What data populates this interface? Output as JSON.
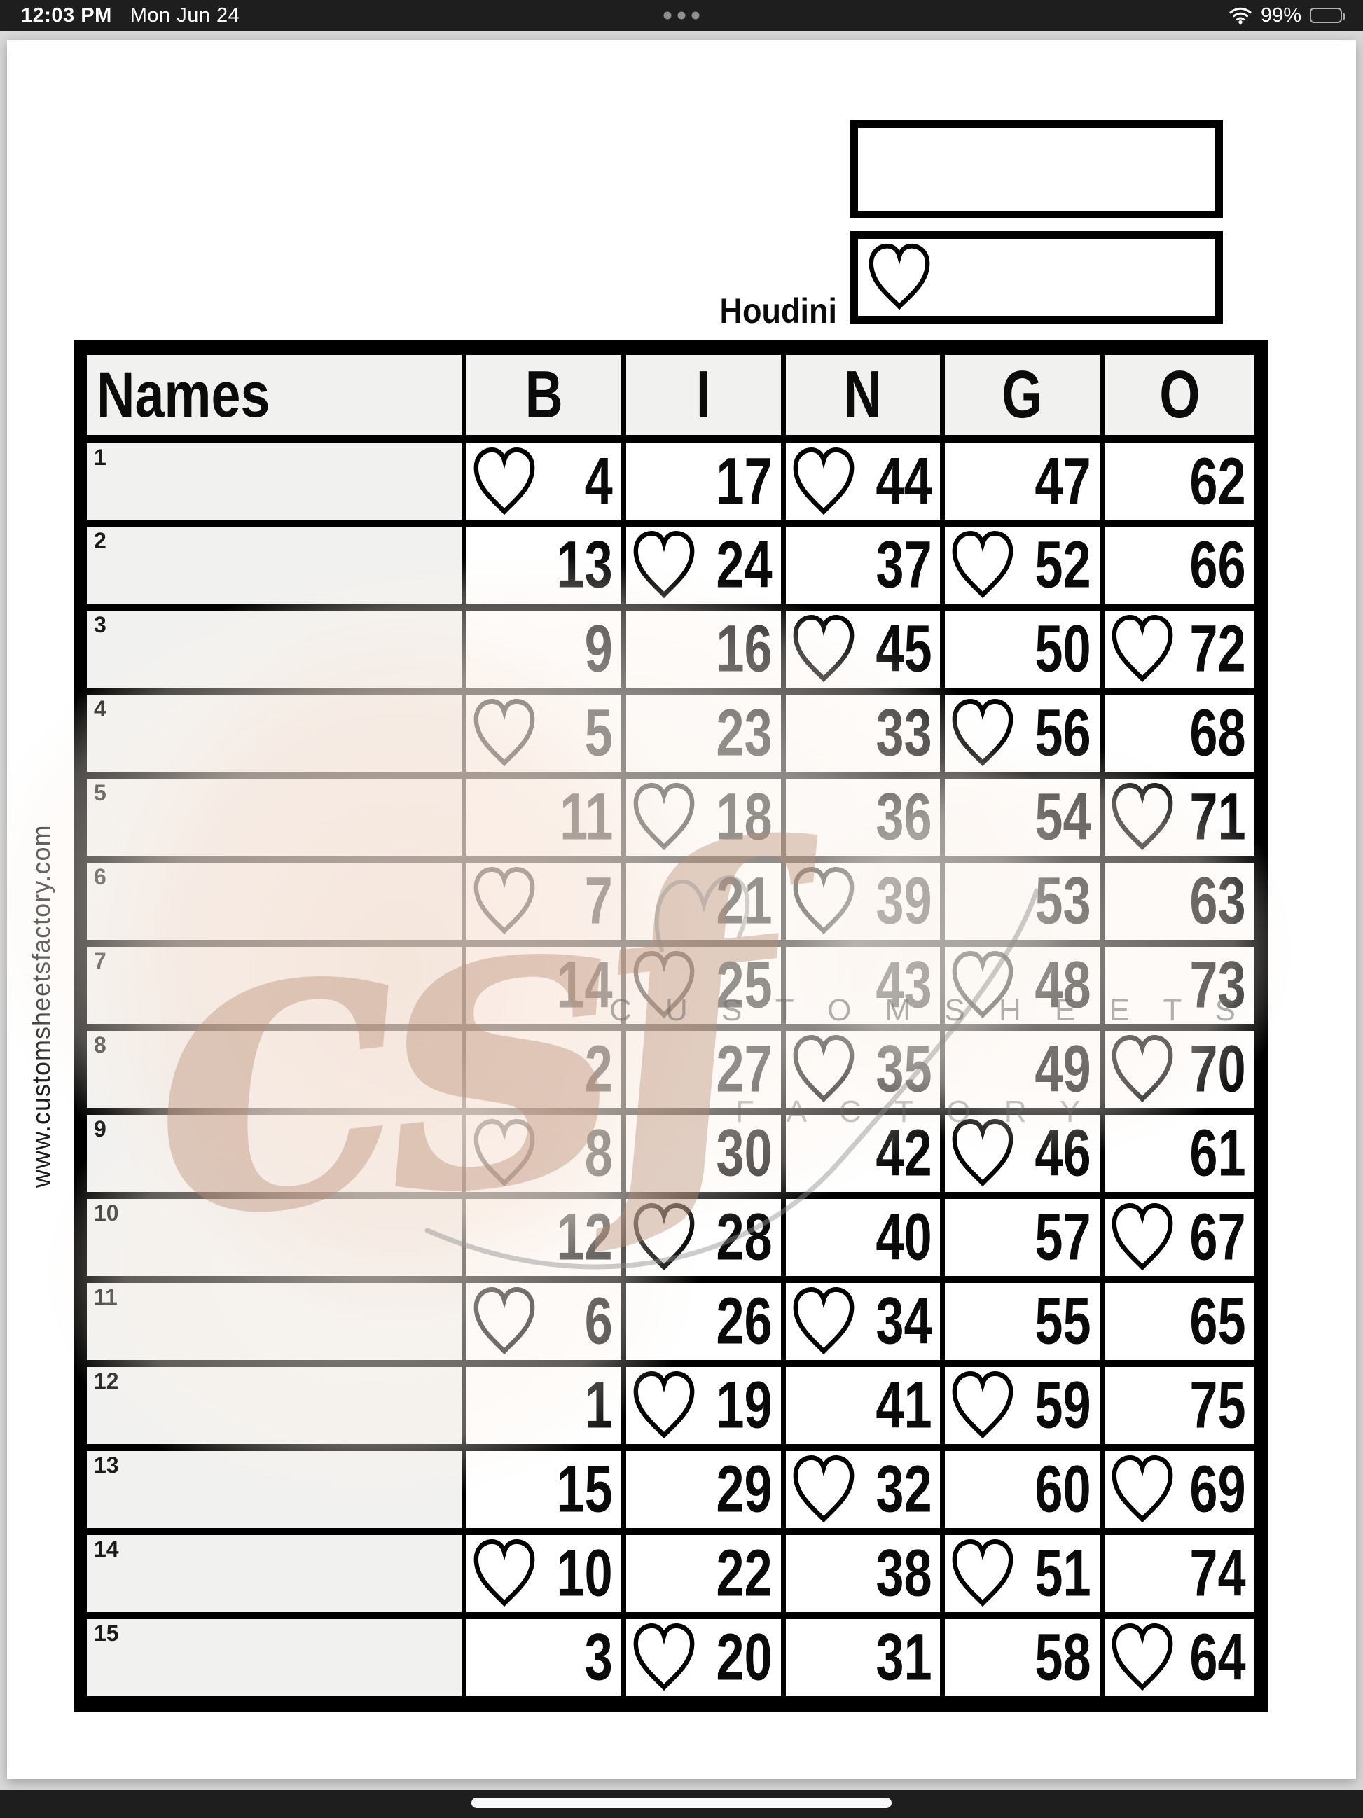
{
  "status_bar": {
    "time": "12:03 PM",
    "date": "Mon Jun 24",
    "battery_percent": "99%"
  },
  "page": {
    "game_title": "Houdini",
    "website": "www.customsheetsfactory.com",
    "watermark": {
      "script": "csf",
      "line1": "C U S T O M   S H E E T S",
      "line2": "F A C T O R Y",
      "script_color": "#bb9078",
      "caps_color": "#8a8a8a"
    },
    "table": {
      "names_header": "Names",
      "columns": [
        "B",
        "I",
        "N",
        "G",
        "O"
      ],
      "rows": [
        {
          "num": "1",
          "cells": [
            {
              "v": "4",
              "heart": true
            },
            {
              "v": "17",
              "heart": false
            },
            {
              "v": "44",
              "heart": true
            },
            {
              "v": "47",
              "heart": false
            },
            {
              "v": "62",
              "heart": false
            }
          ]
        },
        {
          "num": "2",
          "cells": [
            {
              "v": "13",
              "heart": false
            },
            {
              "v": "24",
              "heart": true
            },
            {
              "v": "37",
              "heart": false
            },
            {
              "v": "52",
              "heart": true
            },
            {
              "v": "66",
              "heart": false
            }
          ]
        },
        {
          "num": "3",
          "cells": [
            {
              "v": "9",
              "heart": false
            },
            {
              "v": "16",
              "heart": false
            },
            {
              "v": "45",
              "heart": true
            },
            {
              "v": "50",
              "heart": false
            },
            {
              "v": "72",
              "heart": true
            }
          ]
        },
        {
          "num": "4",
          "cells": [
            {
              "v": "5",
              "heart": true
            },
            {
              "v": "23",
              "heart": false
            },
            {
              "v": "33",
              "heart": false
            },
            {
              "v": "56",
              "heart": true
            },
            {
              "v": "68",
              "heart": false
            }
          ]
        },
        {
          "num": "5",
          "cells": [
            {
              "v": "11",
              "heart": false
            },
            {
              "v": "18",
              "heart": true
            },
            {
              "v": "36",
              "heart": false
            },
            {
              "v": "54",
              "heart": false
            },
            {
              "v": "71",
              "heart": true
            }
          ]
        },
        {
          "num": "6",
          "cells": [
            {
              "v": "7",
              "heart": true
            },
            {
              "v": "21",
              "heart": false
            },
            {
              "v": "39",
              "heart": true
            },
            {
              "v": "53",
              "heart": false
            },
            {
              "v": "63",
              "heart": false
            }
          ]
        },
        {
          "num": "7",
          "cells": [
            {
              "v": "14",
              "heart": false
            },
            {
              "v": "25",
              "heart": true
            },
            {
              "v": "43",
              "heart": false
            },
            {
              "v": "48",
              "heart": true
            },
            {
              "v": "73",
              "heart": false
            }
          ]
        },
        {
          "num": "8",
          "cells": [
            {
              "v": "2",
              "heart": false
            },
            {
              "v": "27",
              "heart": false
            },
            {
              "v": "35",
              "heart": true
            },
            {
              "v": "49",
              "heart": false
            },
            {
              "v": "70",
              "heart": true
            }
          ]
        },
        {
          "num": "9",
          "cells": [
            {
              "v": "8",
              "heart": true
            },
            {
              "v": "30",
              "heart": false
            },
            {
              "v": "42",
              "heart": false
            },
            {
              "v": "46",
              "heart": true
            },
            {
              "v": "61",
              "heart": false
            }
          ]
        },
        {
          "num": "10",
          "cells": [
            {
              "v": "12",
              "heart": false
            },
            {
              "v": "28",
              "heart": true
            },
            {
              "v": "40",
              "heart": false
            },
            {
              "v": "57",
              "heart": false
            },
            {
              "v": "67",
              "heart": true
            }
          ]
        },
        {
          "num": "11",
          "cells": [
            {
              "v": "6",
              "heart": true
            },
            {
              "v": "26",
              "heart": false
            },
            {
              "v": "34",
              "heart": true
            },
            {
              "v": "55",
              "heart": false
            },
            {
              "v": "65",
              "heart": false
            }
          ]
        },
        {
          "num": "12",
          "cells": [
            {
              "v": "1",
              "heart": false
            },
            {
              "v": "19",
              "heart": true
            },
            {
              "v": "41",
              "heart": false
            },
            {
              "v": "59",
              "heart": true
            },
            {
              "v": "75",
              "heart": false
            }
          ]
        },
        {
          "num": "13",
          "cells": [
            {
              "v": "15",
              "heart": false
            },
            {
              "v": "29",
              "heart": false
            },
            {
              "v": "32",
              "heart": true
            },
            {
              "v": "60",
              "heart": false
            },
            {
              "v": "69",
              "heart": true
            }
          ]
        },
        {
          "num": "14",
          "cells": [
            {
              "v": "10",
              "heart": true
            },
            {
              "v": "22",
              "heart": false
            },
            {
              "v": "38",
              "heart": false
            },
            {
              "v": "51",
              "heart": true
            },
            {
              "v": "74",
              "heart": false
            }
          ]
        },
        {
          "num": "15",
          "cells": [
            {
              "v": "3",
              "heart": false
            },
            {
              "v": "20",
              "heart": true
            },
            {
              "v": "31",
              "heart": false
            },
            {
              "v": "58",
              "heart": false
            },
            {
              "v": "64",
              "heart": true
            }
          ]
        }
      ]
    }
  }
}
